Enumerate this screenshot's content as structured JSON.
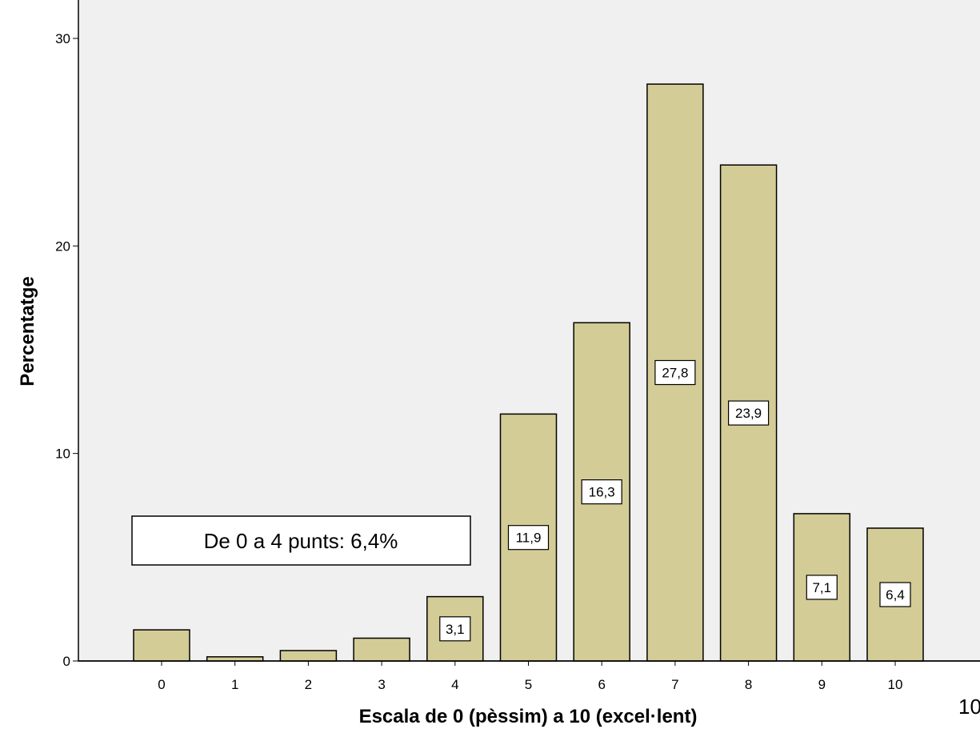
{
  "chart_data": {
    "type": "bar",
    "title": "",
    "xlabel": "Escala de 0 (pèssim) a 10 (excel·lent)",
    "ylabel": "Percentatge",
    "categories": [
      "0",
      "1",
      "2",
      "3",
      "4",
      "5",
      "6",
      "7",
      "8",
      "9",
      "10"
    ],
    "values": [
      1.5,
      0.2,
      0.5,
      1.1,
      3.1,
      11.9,
      16.3,
      27.8,
      23.9,
      7.1,
      6.4
    ],
    "data_labels": [
      "",
      "",
      "",
      "",
      "3,1",
      "11,9",
      "16,3",
      "27,8",
      "23,9",
      "7,1",
      "6,4"
    ],
    "ylim": [
      0,
      30
    ],
    "yticks": [
      0,
      10,
      20,
      30
    ],
    "grid": false,
    "annotation": "De 0 a 4 punts: 6,4%",
    "colors": {
      "bar_fill": "#d3cc96",
      "bar_stroke": "#000000",
      "plot_bg": "#f0f0f0"
    }
  },
  "page_corner_text": "10"
}
